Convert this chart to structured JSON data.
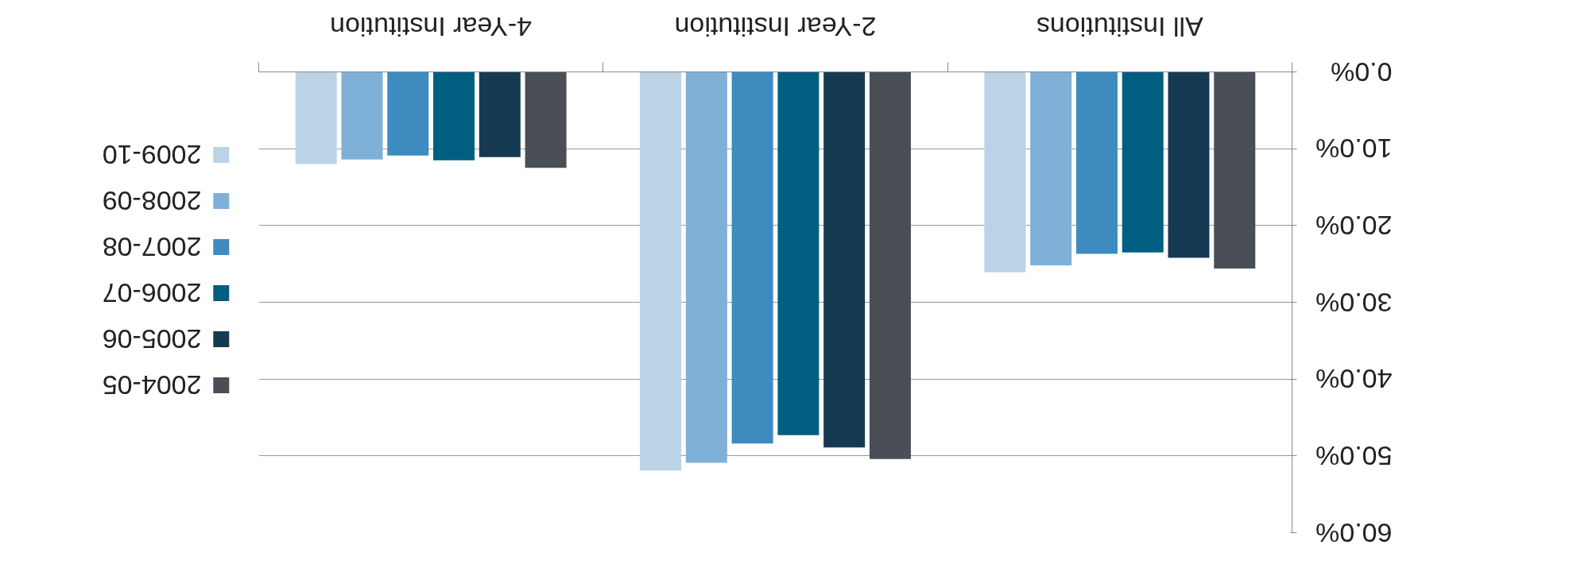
{
  "chart_data": {
    "type": "bar",
    "categories": [
      "4-Year Institution",
      "2-Year Institution",
      "All Institutions"
    ],
    "series": [
      {
        "name": "2009-10",
        "color": "#bcd3e6",
        "values": [
          12.0,
          51.9,
          26.1
        ]
      },
      {
        "name": "2008-09",
        "color": "#7eb0d8",
        "values": [
          11.4,
          50.9,
          25.2
        ]
      },
      {
        "name": "2007-08",
        "color": "#3d8bbf",
        "values": [
          10.9,
          48.4,
          23.7
        ]
      },
      {
        "name": "2006-07",
        "color": "#005f80",
        "values": [
          11.5,
          47.3,
          23.5
        ]
      },
      {
        "name": "2005-06",
        "color": "#163a52",
        "values": [
          11.1,
          48.9,
          24.2
        ]
      },
      {
        "name": "2004-05",
        "color": "#4a4e56",
        "values": [
          12.5,
          50.4,
          25.6
        ]
      }
    ],
    "ylim": [
      60,
      0
    ],
    "yticks": [
      {
        "value": 0,
        "label": "0.0%"
      },
      {
        "value": 10,
        "label": "10.0%"
      },
      {
        "value": 20,
        "label": "20.0%"
      },
      {
        "value": 30,
        "label": "30.0%"
      },
      {
        "value": 40,
        "label": "40.0%"
      },
      {
        "value": 50,
        "label": "50.0%"
      },
      {
        "value": 60,
        "label": "60.0%"
      }
    ],
    "grid": "y",
    "legend": "left"
  }
}
